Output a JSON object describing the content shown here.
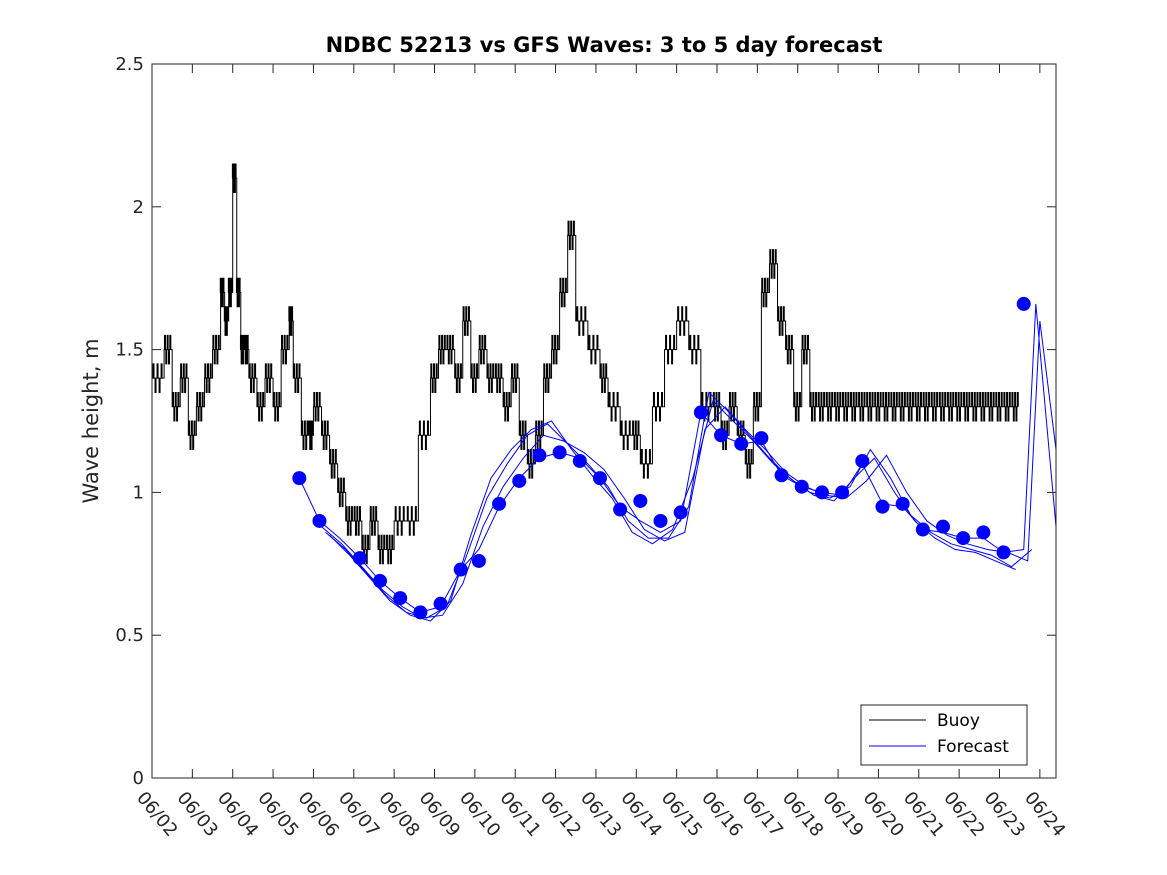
{
  "chart_data": {
    "type": "line",
    "title": "NDBC 52213 vs GFS Waves: 3 to 5 day forecast",
    "ylabel": "Wave height, m",
    "xlabel": "",
    "ylim": [
      0,
      2.5
    ],
    "yticks": [
      "0",
      "0.5",
      "1",
      "1.5",
      "2",
      "2.5"
    ],
    "xlim": [
      0,
      22.4
    ],
    "xticks": [
      "06/02",
      "06/03",
      "06/04",
      "06/05",
      "06/06",
      "06/07",
      "06/08",
      "06/09",
      "06/10",
      "06/11",
      "06/12",
      "06/13",
      "06/14",
      "06/15",
      "06/16",
      "06/17",
      "06/18",
      "06/19",
      "06/20",
      "06/21",
      "06/22",
      "06/23",
      "06/24"
    ],
    "grid": false,
    "legend_position": "bottom-right",
    "colors": {
      "buoy": "#000000",
      "forecast": "#0000ff"
    },
    "series": [
      {
        "name": "Buoy",
        "style": "step",
        "x": [
          0.0,
          0.3,
          0.5,
          0.7,
          0.9,
          1.1,
          1.3,
          1.5,
          1.7,
          1.8,
          1.9,
          2.0,
          2.1,
          2.2,
          2.3,
          2.4,
          2.6,
          2.8,
          3.0,
          3.2,
          3.4,
          3.5,
          3.7,
          3.9,
          4.0,
          4.2,
          4.4,
          4.6,
          4.8,
          5.0,
          5.2,
          5.4,
          5.6,
          5.8,
          6.0,
          6.3,
          6.6,
          6.9,
          7.1,
          7.3,
          7.5,
          7.7,
          7.9,
          8.1,
          8.3,
          8.5,
          8.7,
          8.9,
          9.1,
          9.3,
          9.5,
          9.7,
          9.9,
          10.1,
          10.3,
          10.5,
          10.8,
          11.1,
          11.3,
          11.6,
          11.9,
          12.1,
          12.4,
          12.7,
          13.0,
          13.3,
          13.6,
          13.9,
          14.1,
          14.3,
          14.5,
          14.7,
          14.9,
          15.1,
          15.3,
          15.5,
          15.7,
          15.9,
          16.1,
          16.3,
          16.5,
          16.7,
          16.9,
          17.1,
          17.3,
          17.5,
          17.7,
          17.9,
          18.1,
          18.3,
          18.5,
          18.7,
          18.9,
          19.1,
          19.3,
          19.5,
          19.7,
          19.9,
          20.1,
          20.3,
          20.5,
          20.7,
          20.9,
          21.1,
          21.3
        ],
        "values": [
          1.4,
          1.5,
          1.3,
          1.4,
          1.2,
          1.3,
          1.4,
          1.5,
          1.7,
          1.6,
          1.7,
          2.1,
          1.7,
          1.5,
          1.5,
          1.4,
          1.3,
          1.4,
          1.3,
          1.5,
          1.6,
          1.4,
          1.2,
          1.2,
          1.3,
          1.2,
          1.1,
          1.0,
          0.9,
          0.9,
          0.8,
          0.9,
          0.8,
          0.8,
          0.9,
          0.9,
          1.2,
          1.4,
          1.5,
          1.5,
          1.4,
          1.6,
          1.4,
          1.5,
          1.4,
          1.4,
          1.3,
          1.4,
          1.2,
          1.1,
          1.2,
          1.4,
          1.5,
          1.7,
          1.9,
          1.6,
          1.5,
          1.4,
          1.3,
          1.2,
          1.2,
          1.1,
          1.3,
          1.5,
          1.6,
          1.5,
          1.3,
          1.3,
          1.2,
          1.3,
          1.2,
          1.1,
          1.3,
          1.7,
          1.8,
          1.6,
          1.5,
          1.3,
          1.5,
          1.3,
          1.3,
          1.3,
          1.3,
          1.3,
          1.3,
          1.3,
          1.3,
          1.3,
          1.3,
          1.3,
          1.3,
          1.3,
          1.3,
          1.3,
          1.3,
          1.3,
          1.3,
          1.3,
          1.3,
          1.3,
          1.3,
          1.3,
          1.3,
          1.3,
          1.3
        ]
      },
      {
        "name": "Forecast",
        "style": "markers",
        "x": [
          3.65,
          4.15,
          5.15,
          5.65,
          6.15,
          6.65,
          7.15,
          7.65,
          8.1,
          8.6,
          9.1,
          9.6,
          10.1,
          10.6,
          11.1,
          11.6,
          12.1,
          12.6,
          13.1,
          13.6,
          14.1,
          14.6,
          15.1,
          15.6,
          16.1,
          16.6,
          17.1,
          17.6,
          18.1,
          18.6,
          19.1,
          19.6,
          20.1,
          20.6,
          21.1,
          21.6
        ],
        "values": [
          1.05,
          0.9,
          0.77,
          0.69,
          0.63,
          0.58,
          0.61,
          0.73,
          0.76,
          0.96,
          1.04,
          1.13,
          1.14,
          1.11,
          1.05,
          0.94,
          0.97,
          0.9,
          0.93,
          1.28,
          1.2,
          1.17,
          1.19,
          1.06,
          1.02,
          1.0,
          1.0,
          1.11,
          0.95,
          0.96,
          0.87,
          0.88,
          0.84,
          0.86,
          0.79,
          1.66
        ]
      },
      {
        "name": "",
        "style": "line",
        "x": [
          3.65,
          4.15,
          4.65,
          5.15,
          5.65,
          6.15,
          6.65,
          7.15,
          7.65,
          8.1,
          8.6,
          9.1,
          9.6,
          10.1,
          10.6,
          11.1,
          11.6,
          12.1,
          12.6,
          13.1,
          13.6,
          14.1,
          14.6,
          15.1,
          15.6,
          16.1,
          16.6,
          17.1,
          17.6,
          18.1,
          18.6,
          19.1,
          19.6,
          20.1,
          20.6,
          21.1,
          21.6,
          21.9,
          22.4
        ],
        "values": [
          1.05,
          0.9,
          0.84,
          0.77,
          0.69,
          0.63,
          0.58,
          0.6,
          0.73,
          0.8,
          0.95,
          1.05,
          1.12,
          1.14,
          1.12,
          1.05,
          0.95,
          0.9,
          0.86,
          0.9,
          1.28,
          1.2,
          1.17,
          1.18,
          1.06,
          1.02,
          1.0,
          0.99,
          1.1,
          0.96,
          0.95,
          0.87,
          0.86,
          0.84,
          0.84,
          0.79,
          0.8,
          1.66,
          0.88
        ]
      },
      {
        "name": "",
        "style": "line",
        "x": [
          4.2,
          4.7,
          5.2,
          5.7,
          6.2,
          6.7,
          7.2,
          7.7,
          8.2,
          8.7,
          9.2,
          9.7,
          10.2,
          10.7,
          11.2,
          11.7,
          12.2,
          12.7,
          13.2,
          13.7,
          14.2,
          14.7,
          15.2,
          15.7,
          16.2,
          16.7,
          17.2,
          17.7,
          18.2,
          18.7,
          19.2,
          19.7,
          20.2,
          20.7,
          21.2,
          21.7,
          22.0,
          22.4
        ],
        "values": [
          0.88,
          0.82,
          0.74,
          0.66,
          0.6,
          0.56,
          0.57,
          0.68,
          0.88,
          1.02,
          1.12,
          1.2,
          1.18,
          1.14,
          1.08,
          0.98,
          0.87,
          0.83,
          0.86,
          1.22,
          1.3,
          1.22,
          1.15,
          1.07,
          1.02,
          0.99,
          0.98,
          1.04,
          1.13,
          1.0,
          0.9,
          0.85,
          0.82,
          0.8,
          0.79,
          0.76,
          1.6,
          1.15
        ]
      },
      {
        "name": "",
        "style": "line",
        "x": [
          4.3,
          4.8,
          5.3,
          5.8,
          6.3,
          6.8,
          7.3,
          7.8,
          8.3,
          8.8,
          9.3,
          9.8,
          10.3,
          10.8,
          11.3,
          11.8,
          12.3,
          12.8,
          13.3,
          13.8,
          14.3,
          14.8,
          15.3,
          15.8,
          16.3,
          16.8,
          17.3,
          17.8,
          18.3,
          18.8,
          19.3,
          19.8,
          20.3,
          20.8,
          21.3,
          21.8
        ],
        "values": [
          0.86,
          0.8,
          0.72,
          0.64,
          0.58,
          0.56,
          0.6,
          0.78,
          0.98,
          1.1,
          1.2,
          1.24,
          1.17,
          1.1,
          1.02,
          0.9,
          0.84,
          0.84,
          0.95,
          1.35,
          1.28,
          1.2,
          1.12,
          1.05,
          1.0,
          0.98,
          1.02,
          1.15,
          1.05,
          0.92,
          0.86,
          0.82,
          0.8,
          0.78,
          0.74,
          0.8
        ]
      },
      {
        "name": "",
        "style": "line",
        "x": [
          4.4,
          4.9,
          5.4,
          5.9,
          6.4,
          6.9,
          7.4,
          7.9,
          8.4,
          8.9,
          9.4,
          9.9,
          10.4,
          10.9,
          11.4,
          11.9,
          12.4,
          12.9,
          13.4,
          13.9,
          14.4,
          14.9,
          15.4,
          15.9,
          16.4,
          16.9,
          17.4,
          17.9,
          18.4,
          18.9,
          19.4,
          19.9,
          20.4,
          20.9,
          21.4
        ],
        "values": [
          0.85,
          0.78,
          0.7,
          0.62,
          0.57,
          0.55,
          0.62,
          0.85,
          1.05,
          1.15,
          1.22,
          1.25,
          1.15,
          1.06,
          0.98,
          0.86,
          0.82,
          0.87,
          1.05,
          1.32,
          1.25,
          1.18,
          1.1,
          1.04,
          0.99,
          0.97,
          1.05,
          1.12,
          1.0,
          0.9,
          0.84,
          0.8,
          0.79,
          0.76,
          0.73
        ]
      }
    ]
  }
}
